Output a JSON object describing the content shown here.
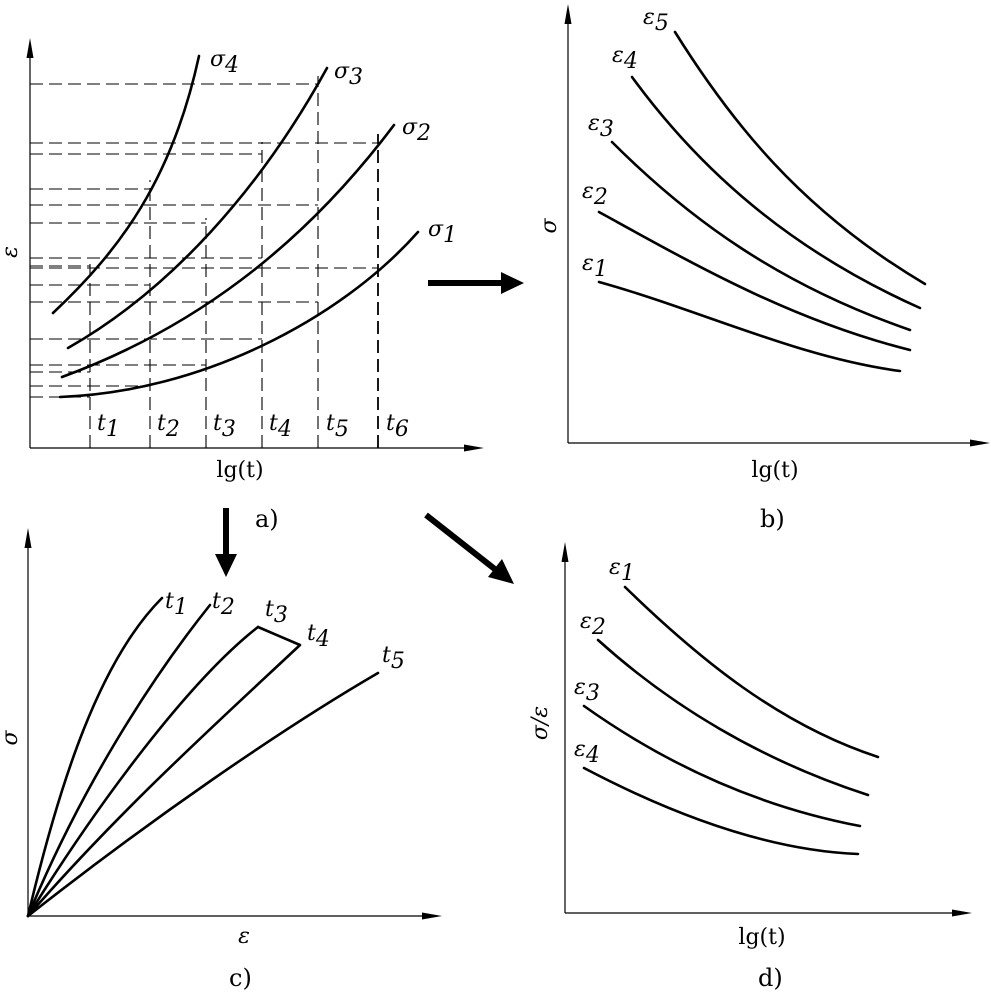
{
  "panel_a": {
    "caption": "a)",
    "axis_x": "lg(t)",
    "axis_y": "ε",
    "curve_labels": [
      {
        "base": "σ",
        "sub": "1"
      },
      {
        "base": "σ",
        "sub": "2"
      },
      {
        "base": "σ",
        "sub": "3"
      },
      {
        "base": "σ",
        "sub": "4"
      }
    ],
    "time_labels": [
      {
        "base": "t",
        "sub": "1"
      },
      {
        "base": "t",
        "sub": "2"
      },
      {
        "base": "t",
        "sub": "3"
      },
      {
        "base": "t",
        "sub": "4"
      },
      {
        "base": "t",
        "sub": "5"
      },
      {
        "base": "t",
        "sub": "6"
      }
    ]
  },
  "panel_b": {
    "caption": "b)",
    "axis_x": "lg(t)",
    "axis_y": "σ",
    "curve_labels": [
      {
        "base": "ε",
        "sub": "1"
      },
      {
        "base": "ε",
        "sub": "2"
      },
      {
        "base": "ε",
        "sub": "3"
      },
      {
        "base": "ε",
        "sub": "4"
      },
      {
        "base": "ε",
        "sub": "5"
      }
    ]
  },
  "panel_c": {
    "caption": "c)",
    "axis_x": "ε",
    "axis_y": "σ",
    "curve_labels": [
      {
        "base": "t",
        "sub": "1"
      },
      {
        "base": "t",
        "sub": "2"
      },
      {
        "base": "t",
        "sub": "3"
      },
      {
        "base": "t",
        "sub": "4"
      },
      {
        "base": "t",
        "sub": "5"
      }
    ]
  },
  "panel_d": {
    "caption": "d)",
    "axis_x": "lg(t)",
    "axis_y": "σ/ε",
    "curve_labels": [
      {
        "base": "ε",
        "sub": "1"
      },
      {
        "base": "ε",
        "sub": "2"
      },
      {
        "base": "ε",
        "sub": "3"
      },
      {
        "base": "ε",
        "sub": "4"
      }
    ]
  }
}
